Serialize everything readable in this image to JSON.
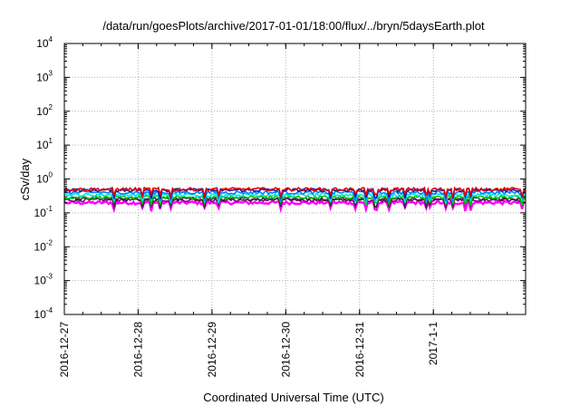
{
  "chart_data": {
    "type": "line",
    "title": "/data/run/goesPlots/archive/2017-01-01/18:00/flux/../bryn/5daysEarth.plot",
    "xlabel": "Coordinated Universal Time (UTC)",
    "ylabel": "cSv/day",
    "yscale": "log",
    "ylim": [
      0.0001,
      10000
    ],
    "yticks": [
      {
        "mantissa": "10",
        "exponent": "4",
        "value": 10000
      },
      {
        "mantissa": "10",
        "exponent": "3",
        "value": 1000
      },
      {
        "mantissa": "10",
        "exponent": "2",
        "value": 100
      },
      {
        "mantissa": "10",
        "exponent": "1",
        "value": 10
      },
      {
        "mantissa": "10",
        "exponent": "0",
        "value": 1
      },
      {
        "mantissa": "10",
        "exponent": "-1",
        "value": 0.1
      },
      {
        "mantissa": "10",
        "exponent": "-2",
        "value": 0.01
      },
      {
        "mantissa": "10",
        "exponent": "-3",
        "value": 0.001
      },
      {
        "mantissa": "10",
        "exponent": "-4",
        "value": 0.0001
      }
    ],
    "xlim": [
      "2016-12-27 00:00",
      "2017-01-02 06:00"
    ],
    "xticks": [
      {
        "label": "2016-12-27",
        "value": "2016-12-27 00:00"
      },
      {
        "label": "2016-12-28",
        "value": "2016-12-28 00:00"
      },
      {
        "label": "2016-12-29",
        "value": "2016-12-29 00:00"
      },
      {
        "label": "2016-12-30",
        "value": "2016-12-30 00:00"
      },
      {
        "label": "2016-12-31",
        "value": "2016-12-31 00:00"
      },
      {
        "label": "2017-1-1",
        "value": "2017-01-01 00:00"
      }
    ],
    "grid": true,
    "series": [
      {
        "color": "#ff00ff",
        "base": 0.2,
        "points": [
          [
            "2016-12-27 00:00",
            0.2
          ],
          [
            "2017-01-02 06:00",
            0.2
          ]
        ]
      },
      {
        "color": "#7f007f",
        "base": 0.24,
        "points": [
          [
            "2016-12-27 00:00",
            0.24
          ],
          [
            "2017-01-02 06:00",
            0.24
          ]
        ]
      },
      {
        "color": "#333333",
        "base": 0.26,
        "points": [
          [
            "2016-12-27 00:00",
            0.26
          ],
          [
            "2017-01-02 06:00",
            0.26
          ]
        ]
      },
      {
        "color": "#00c000",
        "base": 0.29,
        "points": [
          [
            "2016-12-27 00:00",
            0.29
          ],
          [
            "2017-01-02 06:00",
            0.29
          ]
        ]
      },
      {
        "color": "#00e5e5",
        "base": 0.34,
        "points": [
          [
            "2016-12-27 00:00",
            0.34
          ],
          [
            "2017-01-02 06:00",
            0.34
          ]
        ]
      },
      {
        "color": "#0080ff",
        "base": 0.4,
        "points": [
          [
            "2016-12-27 00:00",
            0.4
          ],
          [
            "2017-01-02 06:00",
            0.4
          ]
        ]
      },
      {
        "color": "#1a1aa0",
        "base": 0.47,
        "points": [
          [
            "2016-12-27 00:00",
            0.47
          ],
          [
            "2017-01-02 06:00",
            0.47
          ]
        ]
      },
      {
        "color": "#e00000",
        "base": 0.5,
        "points": [
          [
            "2016-12-27 00:00",
            0.5
          ],
          [
            "2017-01-02 06:00",
            0.5
          ]
        ]
      }
    ]
  }
}
